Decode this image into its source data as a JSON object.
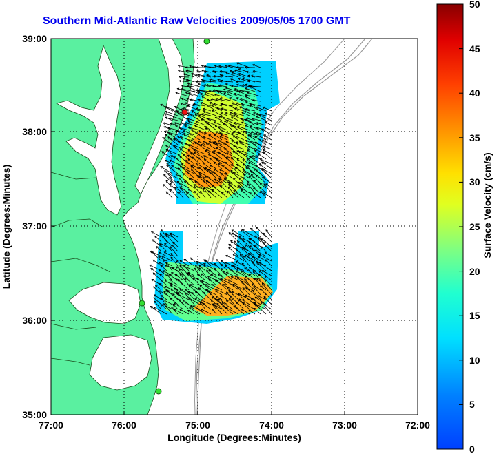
{
  "title": "Southern Mid-Atlantic Raw Velocities 2009/05/05 1700 GMT",
  "x_axis": {
    "label": "Longitude (Degrees:Minutes)",
    "ticks": [
      "77:00",
      "76:00",
      "75:00",
      "74:00",
      "73:00",
      "72:00"
    ]
  },
  "y_axis": {
    "label": "Latitude (Degrees:Minutes)",
    "ticks": [
      "39:00",
      "38:00",
      "37:00",
      "36:00",
      "35:00"
    ]
  },
  "colorbar": {
    "label": "Surface Velocity (cm/s)",
    "ticks": [
      "50",
      "45",
      "40",
      "35",
      "30",
      "25",
      "20",
      "15",
      "10",
      "5",
      "0"
    ],
    "min": 0,
    "max": 50,
    "colormap": "jet"
  },
  "colors": {
    "land": "#5af0a0",
    "title": "#0000ee",
    "arrows": "#000000",
    "bathymetry": "#999999",
    "station_marker": "#33dd33",
    "station_marker_highlight": "#ee1111"
  },
  "grid": "dotted",
  "chart_data": {
    "type": "heatmap",
    "title": "Southern Mid-Atlantic Raw Velocities 2009/05/05 1700 GMT",
    "xlabel": "Longitude (Degrees:Minutes)",
    "ylabel": "Latitude (Degrees:Minutes)",
    "xlim": [
      "77:00",
      "72:00"
    ],
    "ylim": [
      "35:00",
      "39:00"
    ],
    "value_label": "Surface Velocity (cm/s)",
    "value_range": [
      0,
      50
    ]
  }
}
